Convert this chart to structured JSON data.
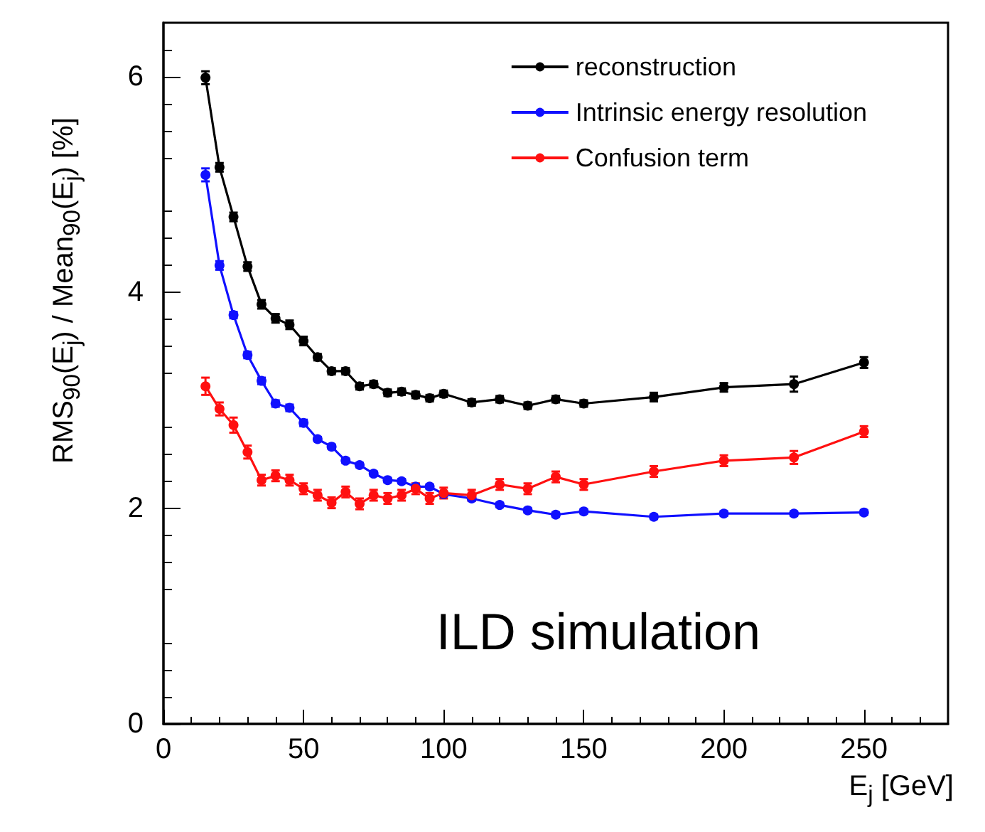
{
  "chart_data": {
    "type": "line",
    "xlabel": "E$_{j}$ [GeV]",
    "ylabel": "RMS$_{90}$(E$_{j}$) / Mean$_{90}$(E$_{j}$) [%]",
    "x": [
      15,
      20,
      25,
      30,
      35,
      40,
      45,
      50,
      55,
      60,
      65,
      70,
      75,
      80,
      85,
      90,
      95,
      100,
      110,
      120,
      130,
      140,
      150,
      175,
      200,
      225,
      250
    ],
    "series": [
      {
        "name": "reconstruction",
        "color": "#000000",
        "values": [
          5.99,
          5.16,
          4.7,
          4.24,
          3.89,
          3.76,
          3.7,
          3.55,
          3.4,
          3.27,
          3.27,
          3.13,
          3.15,
          3.07,
          3.08,
          3.05,
          3.02,
          3.06,
          2.98,
          3.01,
          2.95,
          3.01,
          2.97,
          3.03,
          3.12,
          3.15,
          3.35
        ],
        "errors": [
          0.06,
          0.04,
          0.04,
          0.04,
          0.04,
          0.04,
          0.04,
          0.04,
          0.03,
          0.03,
          0.03,
          0.03,
          0.03,
          0.03,
          0.03,
          0.03,
          0.03,
          0.03,
          0.03,
          0.03,
          0.03,
          0.03,
          0.03,
          0.04,
          0.04,
          0.07,
          0.05
        ]
      },
      {
        "name": "Intrinsic energy resolution",
        "color": "#1010ff",
        "values": [
          5.09,
          4.25,
          3.79,
          3.42,
          3.18,
          2.97,
          2.93,
          2.79,
          2.64,
          2.57,
          2.44,
          2.4,
          2.32,
          2.26,
          2.25,
          2.2,
          2.2,
          2.13,
          2.09,
          2.03,
          1.98,
          1.94,
          1.97,
          1.92,
          1.95,
          1.95,
          1.96
        ],
        "errors": [
          0.06,
          0.04,
          0.03,
          0.03,
          0.03,
          0.03,
          0.03,
          0.03,
          0.02,
          0.02,
          0.02,
          0.02,
          0.02,
          0.02,
          0.02,
          0.02,
          0.02,
          0.02,
          0.02,
          0.02,
          0.02,
          0.02,
          0.02,
          0.02,
          0.02,
          0.02,
          0.02
        ]
      },
      {
        "name": "Confusion term",
        "color": "#ff1010",
        "values": [
          3.13,
          2.92,
          2.77,
          2.52,
          2.26,
          2.3,
          2.26,
          2.18,
          2.12,
          2.05,
          2.15,
          2.04,
          2.12,
          2.09,
          2.12,
          2.18,
          2.09,
          2.14,
          2.12,
          2.22,
          2.18,
          2.29,
          2.22,
          2.34,
          2.44,
          2.47,
          2.71
        ],
        "errors": [
          0.08,
          0.06,
          0.07,
          0.06,
          0.05,
          0.05,
          0.05,
          0.05,
          0.05,
          0.05,
          0.05,
          0.05,
          0.05,
          0.05,
          0.05,
          0.05,
          0.05,
          0.05,
          0.05,
          0.05,
          0.05,
          0.05,
          0.05,
          0.05,
          0.05,
          0.06,
          0.05
        ]
      }
    ],
    "xlim": [
      0,
      280
    ],
    "xticks": [
      0,
      50,
      100,
      150,
      200,
      250
    ],
    "ylim": [
      0,
      6.5
    ],
    "yticks": [
      0,
      2,
      4,
      6
    ],
    "grid": false,
    "legend": "top right",
    "marker": "circle",
    "line_style": "solid",
    "annotations": [
      "ILD simulation"
    ]
  }
}
